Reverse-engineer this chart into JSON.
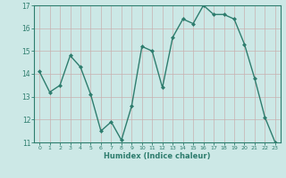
{
  "x": [
    0,
    1,
    2,
    3,
    4,
    5,
    6,
    7,
    8,
    9,
    10,
    11,
    12,
    13,
    14,
    15,
    16,
    17,
    18,
    19,
    20,
    21,
    22,
    23
  ],
  "y": [
    14.1,
    13.2,
    13.5,
    14.8,
    14.3,
    13.1,
    11.5,
    11.9,
    11.1,
    12.6,
    15.2,
    15.0,
    13.4,
    15.6,
    16.4,
    16.2,
    17.0,
    16.6,
    16.6,
    16.4,
    15.3,
    13.8,
    12.1,
    11.0
  ],
  "line_color": "#2e7d6e",
  "bg_color": "#cce8e6",
  "grid_color": "#b0cfcd",
  "xlabel": "Humidex (Indice chaleur)",
  "ylim_low": 11,
  "ylim_high": 17,
  "yticks": [
    11,
    12,
    13,
    14,
    15,
    16,
    17
  ],
  "xticks": [
    0,
    1,
    2,
    3,
    4,
    5,
    6,
    7,
    8,
    9,
    10,
    11,
    12,
    13,
    14,
    15,
    16,
    17,
    18,
    19,
    20,
    21,
    22,
    23
  ],
  "markersize": 2.0,
  "linewidth": 1.0
}
